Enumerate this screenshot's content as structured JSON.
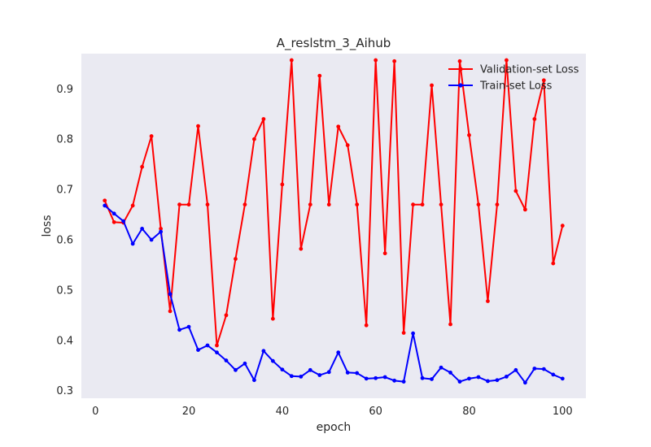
{
  "chart_data": {
    "type": "line",
    "title": "A_reslstm_3_Aihub",
    "xlabel": "epoch",
    "ylabel": "loss",
    "xlim": [
      -3,
      105
    ],
    "ylim": [
      0.285,
      0.97
    ],
    "xticks": [
      0,
      20,
      40,
      60,
      80,
      100
    ],
    "yticks": [
      0.3,
      0.4,
      0.5,
      0.6,
      0.7,
      0.8,
      0.9
    ],
    "grid": false,
    "legend_position": "top-right",
    "x": [
      2,
      4,
      6,
      8,
      10,
      12,
      14,
      16,
      18,
      20,
      22,
      24,
      26,
      28,
      30,
      32,
      34,
      36,
      38,
      40,
      42,
      44,
      46,
      48,
      50,
      52,
      54,
      56,
      58,
      60,
      62,
      64,
      66,
      68,
      70,
      72,
      74,
      76,
      78,
      80,
      82,
      84,
      86,
      88,
      90,
      92,
      94,
      96,
      98,
      100
    ],
    "series": [
      {
        "name": "Validation-set Loss",
        "color": "#ff0000",
        "values": [
          0.678,
          0.635,
          0.634,
          0.668,
          0.745,
          0.806,
          0.622,
          0.458,
          0.67,
          0.67,
          0.826,
          0.67,
          0.39,
          0.45,
          0.562,
          0.67,
          0.8,
          0.84,
          0.443,
          0.71,
          0.957,
          0.582,
          0.67,
          0.926,
          0.67,
          0.825,
          0.788,
          0.67,
          0.43,
          0.957,
          0.573,
          0.955,
          0.415,
          0.67,
          0.67,
          0.907,
          0.67,
          0.432,
          0.955,
          0.808,
          0.67,
          0.478,
          0.67,
          0.957,
          0.697,
          0.66,
          0.84,
          0.917,
          0.553,
          0.628
        ]
      },
      {
        "name": "Train-set Loss",
        "color": "#0000ff",
        "values": [
          0.668,
          0.652,
          0.637,
          0.592,
          0.622,
          0.6,
          0.616,
          0.492,
          0.421,
          0.427,
          0.381,
          0.39,
          0.376,
          0.36,
          0.341,
          0.354,
          0.321,
          0.379,
          0.359,
          0.342,
          0.329,
          0.328,
          0.341,
          0.331,
          0.337,
          0.376,
          0.336,
          0.335,
          0.324,
          0.325,
          0.327,
          0.32,
          0.318,
          0.414,
          0.325,
          0.323,
          0.346,
          0.336,
          0.318,
          0.324,
          0.327,
          0.319,
          0.321,
          0.328,
          0.341,
          0.316,
          0.344,
          0.343,
          0.332,
          0.324
        ]
      }
    ]
  }
}
